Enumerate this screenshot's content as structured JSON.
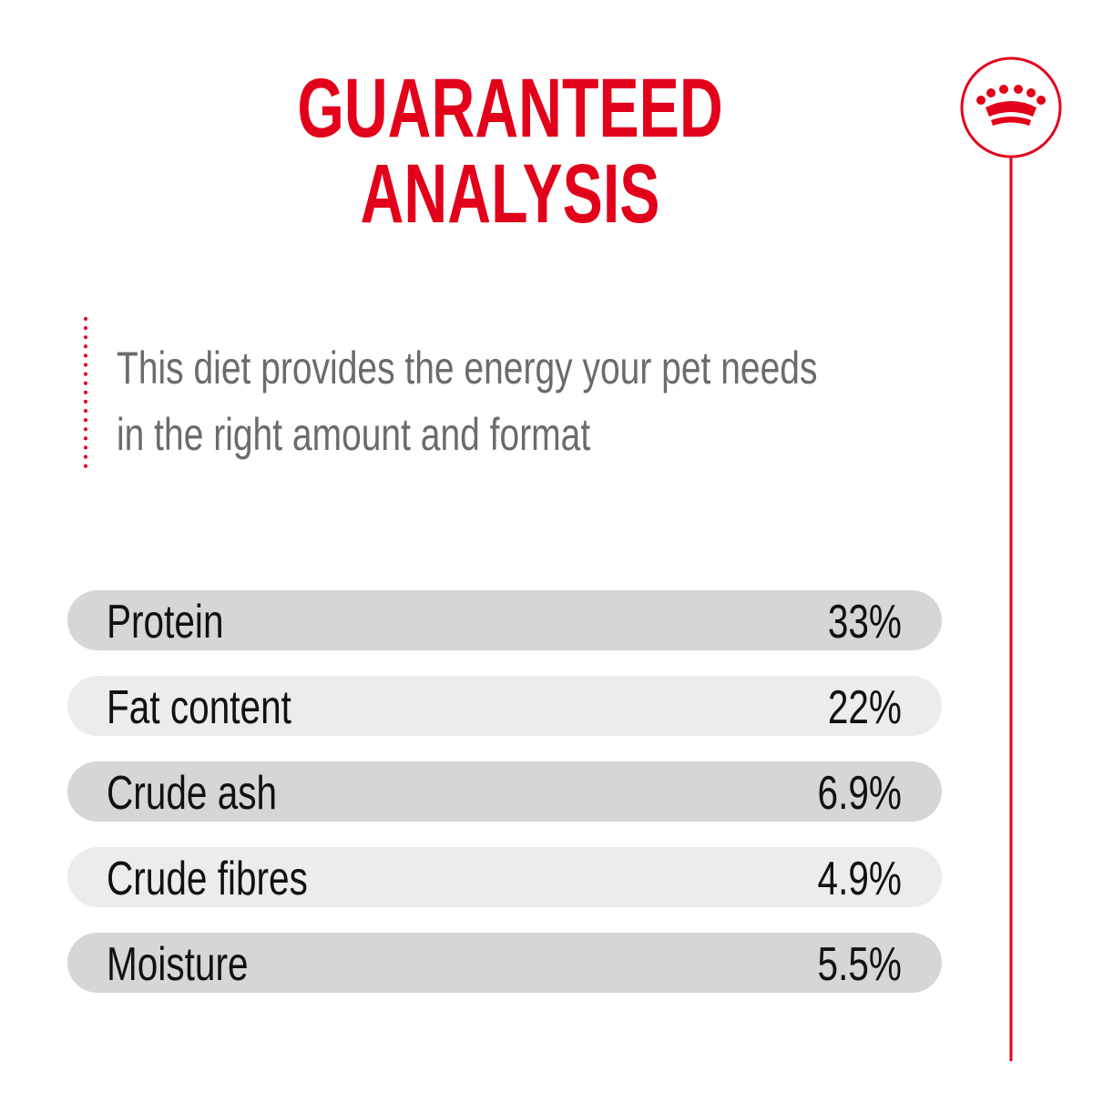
{
  "header": {
    "title": [
      "GUARANTEED",
      "ANALYSIS"
    ]
  },
  "description": [
    "This diet provides the energy your pet needs",
    "in the right amount and format"
  ],
  "table": {
    "rows": [
      [
        "Protein",
        "33%"
      ],
      [
        "Fat content",
        "22%"
      ],
      [
        "Crude ash",
        "6.9%"
      ],
      [
        "Crude fibres",
        "4.9%"
      ],
      [
        "Moisture",
        "5.5%"
      ]
    ]
  }
}
